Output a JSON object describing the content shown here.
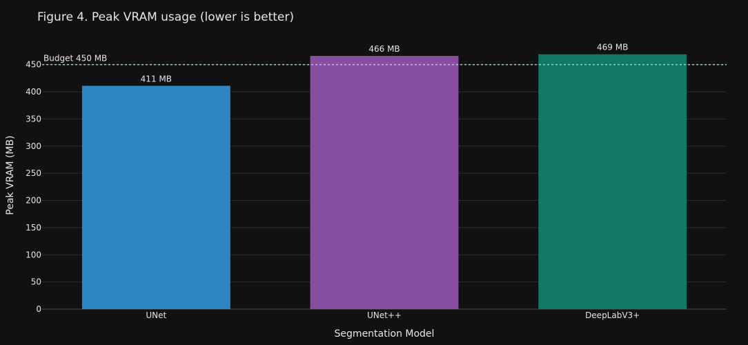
{
  "chart_data": {
    "type": "bar",
    "title": "Figure 4. Peak VRAM usage (lower is better)",
    "xlabel": "Segmentation Model",
    "ylabel": "Peak VRAM (MB)",
    "categories": [
      "UNet",
      "UNet++",
      "DeepLabV3+"
    ],
    "values": [
      411,
      466,
      469
    ],
    "data_labels": [
      "411 MB",
      "466 MB",
      "469 MB"
    ],
    "colors": [
      "#2e86c1",
      "#884ea0",
      "#117a65"
    ],
    "ylim": [
      0,
      480
    ],
    "yticks": [
      0,
      50,
      100,
      150,
      200,
      250,
      300,
      350,
      400,
      450
    ],
    "grid": true,
    "reference_line": {
      "value": 450,
      "label": "Budget 450 MB",
      "color": "#7fe0c9"
    }
  }
}
